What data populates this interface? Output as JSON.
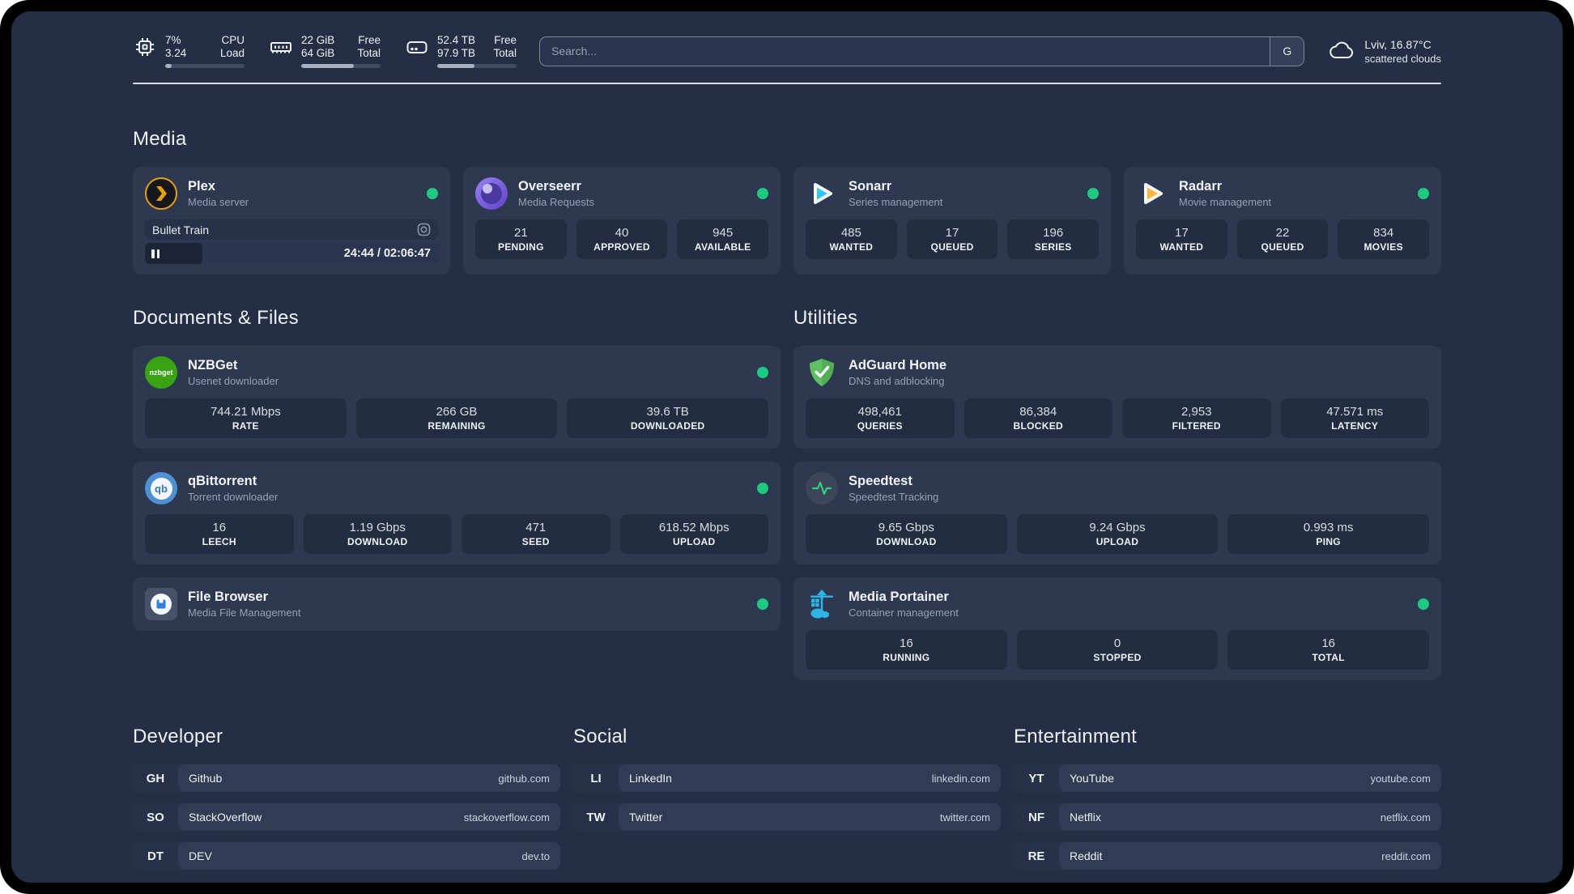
{
  "header": {
    "metrics": [
      {
        "name": "cpu",
        "values": [
          "7%",
          "3.24"
        ],
        "labels": [
          "CPU",
          "Load"
        ],
        "progress_pct": 8
      },
      {
        "name": "memory",
        "values": [
          "22 GiB",
          "64 GiB"
        ],
        "labels": [
          "Free",
          "Total"
        ],
        "progress_pct": 66
      },
      {
        "name": "storage",
        "values": [
          "52.4 TB",
          "97.9 TB"
        ],
        "labels": [
          "Free",
          "Total"
        ],
        "progress_pct": 47
      }
    ],
    "search": {
      "placeholder": "Search...",
      "engine_button": "G"
    },
    "weather": {
      "location": "Lviv, 16.87°C",
      "condition": "scattered clouds"
    }
  },
  "media": {
    "title": "Media",
    "plex": {
      "title": "Plex",
      "subtitle": "Media server",
      "online": true,
      "now_playing": {
        "title": "Bullet Train",
        "time": "24:44 / 02:06:47",
        "state": "paused",
        "progress_pct": 19.5
      }
    },
    "overseerr": {
      "title": "Overseerr",
      "subtitle": "Media Requests",
      "online": true,
      "stats": [
        {
          "value": "21",
          "label": "PENDING"
        },
        {
          "value": "40",
          "label": "APPROVED"
        },
        {
          "value": "945",
          "label": "AVAILABLE"
        }
      ]
    },
    "sonarr": {
      "title": "Sonarr",
      "subtitle": "Series management",
      "online": true,
      "stats": [
        {
          "value": "485",
          "label": "WANTED"
        },
        {
          "value": "17",
          "label": "QUEUED"
        },
        {
          "value": "196",
          "label": "SERIES"
        }
      ]
    },
    "radarr": {
      "title": "Radarr",
      "subtitle": "Movie management",
      "online": true,
      "stats": [
        {
          "value": "17",
          "label": "WANTED"
        },
        {
          "value": "22",
          "label": "QUEUED"
        },
        {
          "value": "834",
          "label": "MOVIES"
        }
      ]
    }
  },
  "documents": {
    "title": "Documents & Files",
    "nzbget": {
      "title": "NZBGet",
      "subtitle": "Usenet downloader",
      "online": true,
      "icon_label": "nzbget",
      "stats": [
        {
          "value": "744.21 Mbps",
          "label": "RATE"
        },
        {
          "value": "266 GB",
          "label": "REMAINING"
        },
        {
          "value": "39.6 TB",
          "label": "DOWNLOADED"
        }
      ]
    },
    "qbittorrent": {
      "title": "qBittorrent",
      "subtitle": "Torrent downloader",
      "online": true,
      "icon_label": "qb",
      "stats": [
        {
          "value": "16",
          "label": "LEECH"
        },
        {
          "value": "1.19 Gbps",
          "label": "DOWNLOAD"
        },
        {
          "value": "471",
          "label": "SEED"
        },
        {
          "value": "618.52 Mbps",
          "label": "UPLOAD"
        }
      ]
    },
    "filebrowser": {
      "title": "File Browser",
      "subtitle": "Media File Management",
      "online": true
    }
  },
  "utilities": {
    "title": "Utilities",
    "adguard": {
      "title": "AdGuard Home",
      "subtitle": "DNS and adblocking",
      "stats": [
        {
          "value": "498,461",
          "label": "QUERIES"
        },
        {
          "value": "86,384",
          "label": "BLOCKED"
        },
        {
          "value": "2,953",
          "label": "FILTERED"
        },
        {
          "value": "47.571 ms",
          "label": "LATENCY"
        }
      ]
    },
    "speedtest": {
      "title": "Speedtest",
      "subtitle": "Speedtest Tracking",
      "stats": [
        {
          "value": "9.65 Gbps",
          "label": "DOWNLOAD"
        },
        {
          "value": "9.24 Gbps",
          "label": "UPLOAD"
        },
        {
          "value": "0.993 ms",
          "label": "PING"
        }
      ]
    },
    "portainer": {
      "title": "Media Portainer",
      "subtitle": "Container management",
      "online": true,
      "stats": [
        {
          "value": "16",
          "label": "RUNNING"
        },
        {
          "value": "0",
          "label": "STOPPED"
        },
        {
          "value": "16",
          "label": "TOTAL"
        }
      ]
    }
  },
  "bookmarks": {
    "developer": {
      "title": "Developer",
      "links": [
        {
          "abbr": "GH",
          "name": "Github",
          "url": "github.com"
        },
        {
          "abbr": "SO",
          "name": "StackOverflow",
          "url": "stackoverflow.com"
        },
        {
          "abbr": "DT",
          "name": "DEV",
          "url": "dev.to"
        }
      ]
    },
    "social": {
      "title": "Social",
      "links": [
        {
          "abbr": "LI",
          "name": "LinkedIn",
          "url": "linkedin.com"
        },
        {
          "abbr": "TW",
          "name": "Twitter",
          "url": "twitter.com"
        }
      ]
    },
    "entertainment": {
      "title": "Entertainment",
      "links": [
        {
          "abbr": "YT",
          "name": "YouTube",
          "url": "youtube.com"
        },
        {
          "abbr": "NF",
          "name": "Netflix",
          "url": "netflix.com"
        },
        {
          "abbr": "RE",
          "name": "Reddit",
          "url": "reddit.com"
        }
      ]
    }
  }
}
